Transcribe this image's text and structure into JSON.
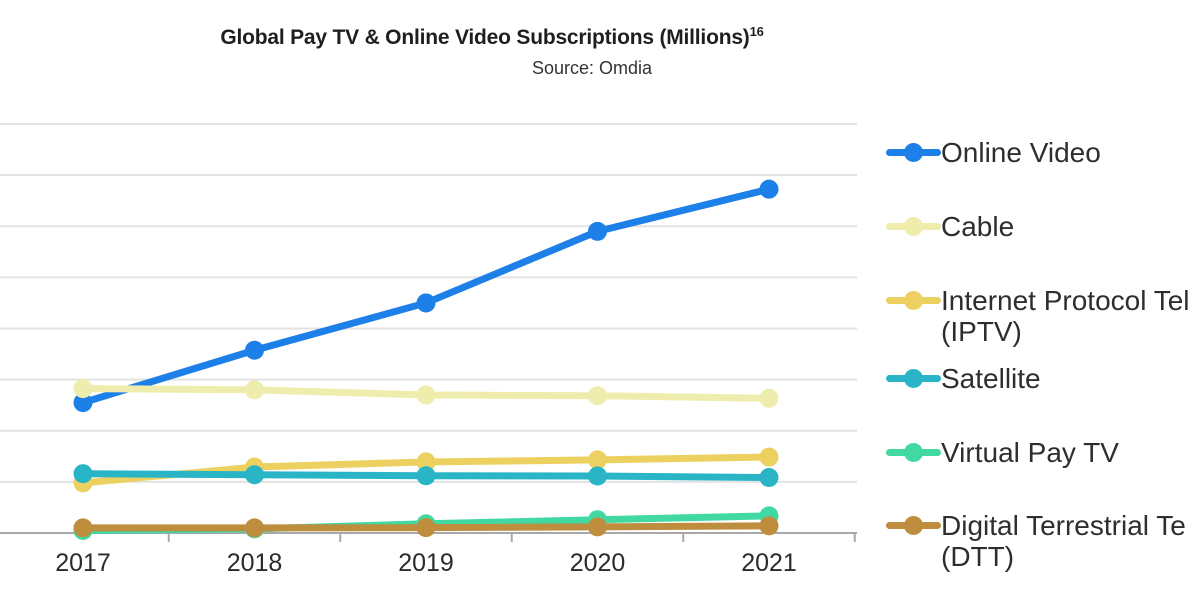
{
  "chart_data": {
    "type": "line",
    "title": "Global Pay TV & Online Video Subscriptions (Millions)",
    "title_superscript": "16",
    "subtitle": "Source: Omdia",
    "categories": [
      "2017",
      "2018",
      "2019",
      "2020",
      "2021"
    ],
    "series": [
      {
        "name": "Online Video",
        "legend_lines": [
          "Online Video"
        ],
        "color": "#1d80e8",
        "values": [
          510,
          715,
          900,
          1180,
          1345
        ]
      },
      {
        "name": "Cable",
        "legend_lines": [
          "Cable"
        ],
        "color": "#efedad",
        "values": [
          565,
          560,
          540,
          537,
          527
        ]
      },
      {
        "name": "Internet Protocol Tel (IPTV)",
        "legend_lines": [
          "Internet Protocol Tel",
          "(IPTV)"
        ],
        "color": "#ecd161",
        "values": [
          196,
          258,
          278,
          286,
          297
        ]
      },
      {
        "name": "Satellite",
        "legend_lines": [
          "Satellite"
        ],
        "color": "#2ab5c6",
        "values": [
          232,
          228,
          224,
          223,
          217
        ]
      },
      {
        "name": "Virtual Pay TV",
        "legend_lines": [
          "Virtual Pay TV"
        ],
        "color": "#41d9a1",
        "values": [
          10,
          16,
          36,
          52,
          67
        ]
      },
      {
        "name": "Digital Terrestrial Te (DTT)",
        "legend_lines": [
          "Digital Terrestrial Te",
          "(DTT)"
        ],
        "color": "#bf8d3e",
        "values": [
          20,
          20,
          21,
          24,
          28
        ]
      }
    ],
    "xlabel": "",
    "ylabel": "",
    "ylim": [
      0,
      1600
    ],
    "y_gridline_step": 200,
    "y_axis_labels_visible": false,
    "grid": true,
    "legend_position": "right",
    "grid_color": "#e3e3e3",
    "axis_color": "#a8a8a8",
    "text_color": "#2b2b2b"
  }
}
